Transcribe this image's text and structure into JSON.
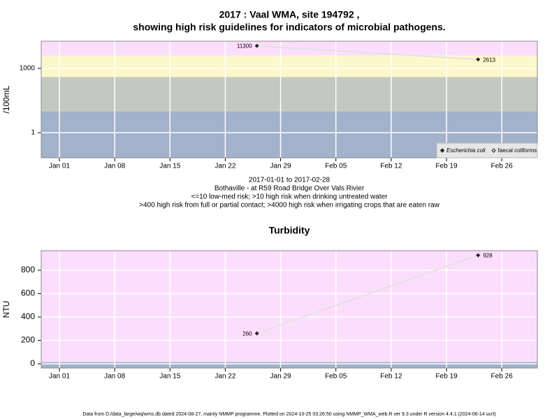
{
  "chart_data": [
    {
      "type": "line",
      "title": "2017 : Vaal WMA, site 194792 ,",
      "subtitle": "showing high risk guidelines for indicators of microbial pathogens.",
      "notes": [
        "2017-01-01 to 2017-02-28",
        "Bothaville - at R59 Road Bridge Over Vals Rivier",
        "<=10 low-med risk; >10 high risk when drinking untreated water",
        ">400 high risk from full or partial contact; >4000 high risk when irrigating crops that are eaten raw"
      ],
      "ylabel": "/100mL",
      "log": true,
      "ylim": [
        0.067,
        18600
      ],
      "yticks": [
        1,
        1000
      ],
      "xlim": [
        -2.3,
        60.5
      ],
      "xticks": [
        {
          "value": 0,
          "label": "Jan 01"
        },
        {
          "value": 7,
          "label": "Jan 08"
        },
        {
          "value": 14,
          "label": "Jan 15"
        },
        {
          "value": 21,
          "label": "Jan 22"
        },
        {
          "value": 28,
          "label": "Jan 29"
        },
        {
          "value": 35,
          "label": "Feb 05"
        },
        {
          "value": 42,
          "label": "Feb 12"
        },
        {
          "value": 49,
          "label": "Feb 19"
        },
        {
          "value": 56,
          "label": "Feb 26"
        }
      ],
      "grid": true,
      "bands": {
        "thresholds": [
          10,
          400,
          4000
        ],
        "colors": [
          "#a2b2cb",
          "#c3c9bf",
          "#fdf8cb",
          "#fcdefc"
        ]
      },
      "x": [
        25,
        53
      ],
      "series": [
        {
          "name": "Escherichia coli",
          "color": "#222222",
          "values": [
            11300,
            2613
          ]
        },
        {
          "name": "faecal coliforms",
          "color": "#222222",
          "values": [
            null,
            null
          ]
        }
      ],
      "legend": "bottom right"
    },
    {
      "type": "line",
      "title": "Turbidity",
      "ylabel": "NTU",
      "log": false,
      "ylim": [
        -36,
        967
      ],
      "yticks": [
        0,
        200,
        400,
        600,
        800
      ],
      "xlim": [
        -2.3,
        60.5
      ],
      "xticks": [
        {
          "value": 0,
          "label": "Jan 01"
        },
        {
          "value": 7,
          "label": "Jan 08"
        },
        {
          "value": 14,
          "label": "Jan 15"
        },
        {
          "value": 21,
          "label": "Jan 22"
        },
        {
          "value": 28,
          "label": "Jan 29"
        },
        {
          "value": 35,
          "label": "Feb 05"
        },
        {
          "value": 42,
          "label": "Feb 12"
        },
        {
          "value": 49,
          "label": "Feb 19"
        },
        {
          "value": 56,
          "label": "Feb 26"
        }
      ],
      "grid": true,
      "bands": {
        "thresholds": [
          15
        ],
        "colors": [
          "#a2b2cb",
          "#fcdefc"
        ]
      },
      "x": [
        25,
        53
      ],
      "series": [
        {
          "color": "#222222",
          "values": [
            260,
            928
          ]
        }
      ]
    }
  ],
  "footer": "Data from D:/data_large/wq/wms.db dated 2024-08-27, mainly NMMP programme. Plotted on 2024-10-25 03:26:50 using NMMP_WMA_web.R ver 9.3 under R version 4.4.1 (2024-06-14 ucrt)"
}
